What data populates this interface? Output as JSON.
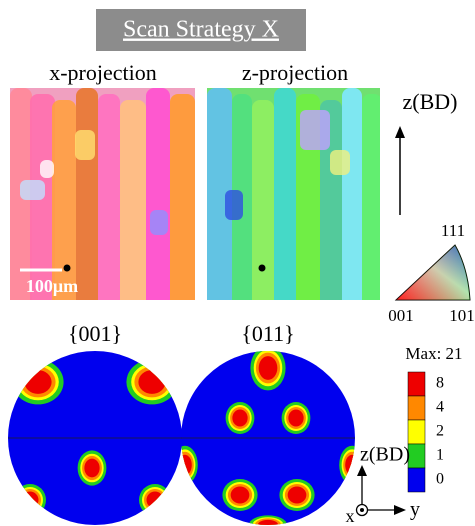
{
  "header": {
    "title": "Scan Strategy X"
  },
  "maps": [
    {
      "label": "x-projection",
      "scale_bar": "100μm"
    },
    {
      "label": "z-projection"
    }
  ],
  "ipf": {
    "axis": "z(BD)",
    "corners": [
      "111",
      "001",
      "101"
    ]
  },
  "pole_figures": [
    {
      "label": "{001}"
    },
    {
      "label": "{011}"
    }
  ],
  "legend": {
    "title": "Max: 21",
    "levels": [
      8,
      4,
      2,
      1,
      0
    ]
  },
  "axes": {
    "z": "z(BD)",
    "x": "x",
    "y": "y"
  }
}
